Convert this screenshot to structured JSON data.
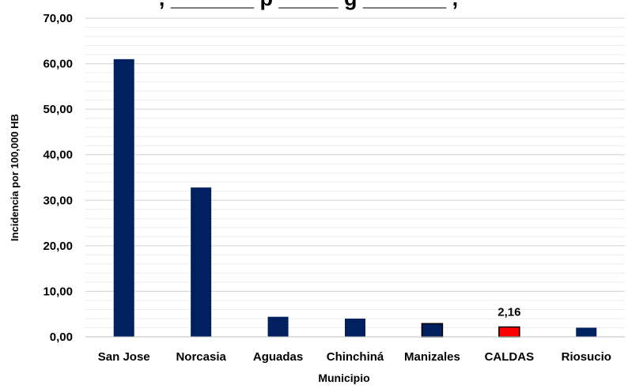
{
  "chart_data": {
    "type": "bar",
    "title": ", _______ p _____ g _______ ,",
    "xlabel": "Municipio",
    "ylabel": "Incidencia por 100,000 HB",
    "categories": [
      "San Jose",
      "Norcasia",
      "Aguadas",
      "Chinchiná",
      "Manizales",
      "CALDAS",
      "Riosucio"
    ],
    "values": [
      61.0,
      32.8,
      4.4,
      4.0,
      2.9,
      2.16,
      2.0
    ],
    "data_labels": [
      "",
      "",
      "",
      "",
      "",
      "2,16",
      ""
    ],
    "ylim": [
      0,
      70
    ],
    "yticks": [
      "0,00",
      "10,00",
      "20,00",
      "30,00",
      "40,00",
      "50,00",
      "60,00",
      "70,00"
    ],
    "grid": true,
    "colors": {
      "default": "#002060",
      "highlight": "#FF0000",
      "grid": "#d9d9d9"
    },
    "highlight_category": "CALDAS",
    "highlight_outline_categories": [
      "Manizales",
      "CALDAS"
    ]
  }
}
